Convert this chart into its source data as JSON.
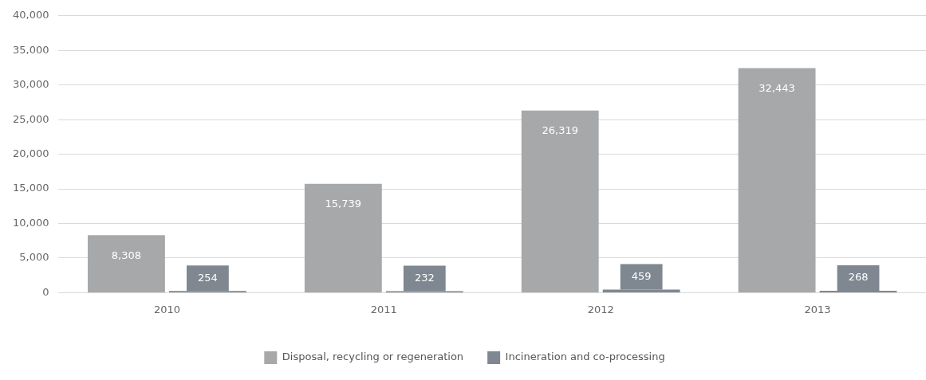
{
  "chart_data": {
    "type": "bar",
    "categories": [
      "2010",
      "2011",
      "2012",
      "2013"
    ],
    "series": [
      {
        "name": "Disposal, recycling or regeneration",
        "color": "#a7a8aa",
        "values": [
          8308,
          15739,
          26319,
          32443
        ],
        "value_labels": [
          "8,308",
          "15,739",
          "26,319",
          "32,443"
        ]
      },
      {
        "name": "Incineration and co-processing",
        "color": "#7f8891",
        "values": [
          254,
          232,
          459,
          268
        ],
        "value_labels": [
          "254",
          "232",
          "459",
          "268"
        ]
      }
    ],
    "ylim": [
      0,
      40000
    ],
    "yticks": [
      {
        "value": 0,
        "label": "0"
      },
      {
        "value": 5000,
        "label": "5,000"
      },
      {
        "value": 10000,
        "label": "10,000"
      },
      {
        "value": 15000,
        "label": "15,000"
      },
      {
        "value": 20000,
        "label": "20,000"
      },
      {
        "value": 25000,
        "label": "25,000"
      },
      {
        "value": 30000,
        "label": "30,000"
      },
      {
        "value": 35000,
        "label": "35,000"
      },
      {
        "value": 40000,
        "label": "40,000"
      }
    ],
    "grid": "y",
    "legend": "bottom"
  }
}
